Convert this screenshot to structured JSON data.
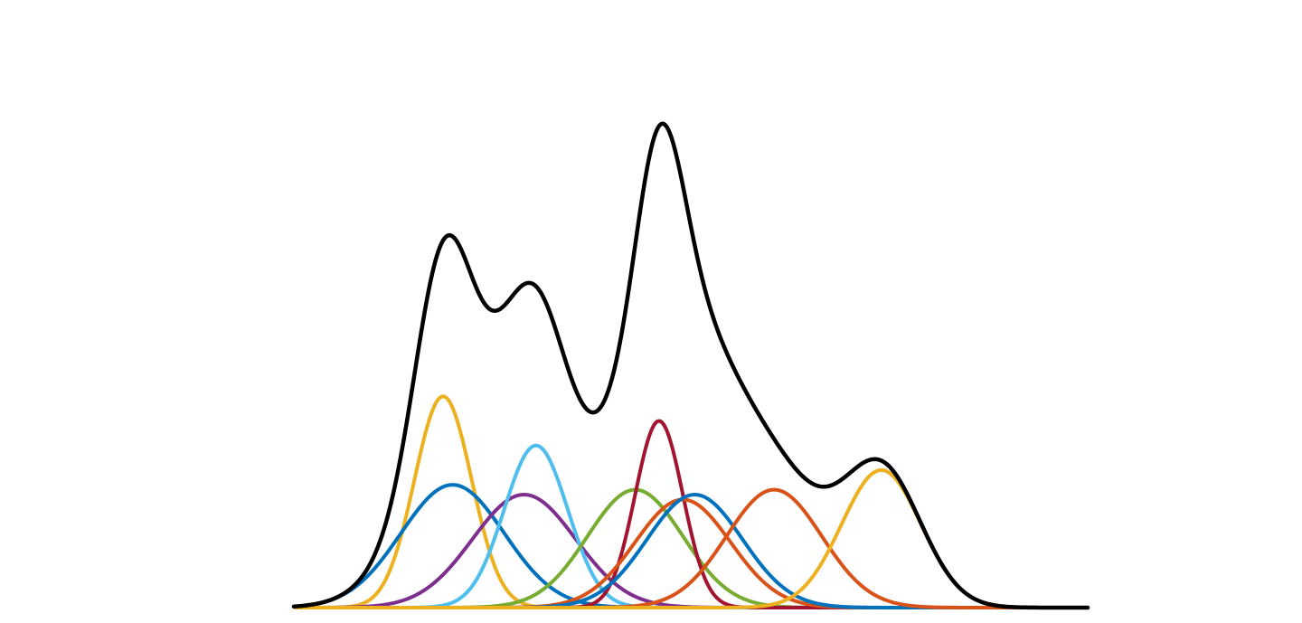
{
  "chart_data": {
    "type": "line",
    "title": "",
    "xlabel": "",
    "ylabel": "",
    "xlim": [
      0,
      10
    ],
    "ylim": [
      0,
      1.2
    ],
    "grid": false,
    "legend": "none",
    "components": [
      {
        "id": "comp-1",
        "color": "#EDB120",
        "amp": 0.43,
        "mu": 1.88,
        "sigma": 0.36
      },
      {
        "id": "comp-2",
        "color": "#0072BD",
        "amp": 0.25,
        "mu": 2.0,
        "sigma": 0.65
      },
      {
        "id": "comp-3",
        "color": "#7E2F8E",
        "amp": 0.23,
        "mu": 2.9,
        "sigma": 0.65
      },
      {
        "id": "comp-4",
        "color": "#4DBEEE",
        "amp": 0.33,
        "mu": 3.05,
        "sigma": 0.4
      },
      {
        "id": "comp-5",
        "color": "#77AC30",
        "amp": 0.24,
        "mu": 4.3,
        "sigma": 0.6
      },
      {
        "id": "comp-6",
        "color": "#A2142F",
        "amp": 0.38,
        "mu": 4.6,
        "sigma": 0.3
      },
      {
        "id": "comp-7",
        "color": "#D95319",
        "amp": 0.22,
        "mu": 4.9,
        "sigma": 0.6
      },
      {
        "id": "comp-8",
        "color": "#0072BD",
        "amp": 0.23,
        "mu": 5.05,
        "sigma": 0.6
      },
      {
        "id": "comp-9",
        "color": "#D95319",
        "amp": 0.24,
        "mu": 6.05,
        "sigma": 0.6
      },
      {
        "id": "comp-10",
        "color": "#EDB120",
        "amp": 0.28,
        "mu": 7.4,
        "sigma": 0.5
      }
    ],
    "sum_color": "#000000"
  }
}
